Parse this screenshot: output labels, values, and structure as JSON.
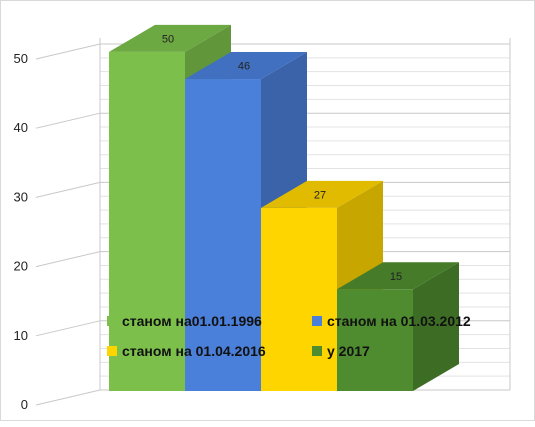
{
  "chart_data": {
    "type": "bar",
    "title": "",
    "xlabel": "",
    "ylabel": "",
    "ylim": [
      0,
      50
    ],
    "yticks": [
      0,
      10,
      20,
      30,
      40,
      50
    ],
    "grid": true,
    "legend_position": "bottom-inside",
    "series": [
      {
        "name": "станом на01.01.1996",
        "value": 50,
        "label": "50",
        "color": "#7CC04B"
      },
      {
        "name": "станом на 01.03.2012",
        "value": 46,
        "label": "46",
        "color": "#4A7FDA"
      },
      {
        "name": "станом на 01.04.2016",
        "value": 27,
        "label": "27",
        "color": "#FFD500"
      },
      {
        "name": "у 2017",
        "value": 15,
        "label": "15",
        "color": "#4E8C2F"
      }
    ]
  }
}
